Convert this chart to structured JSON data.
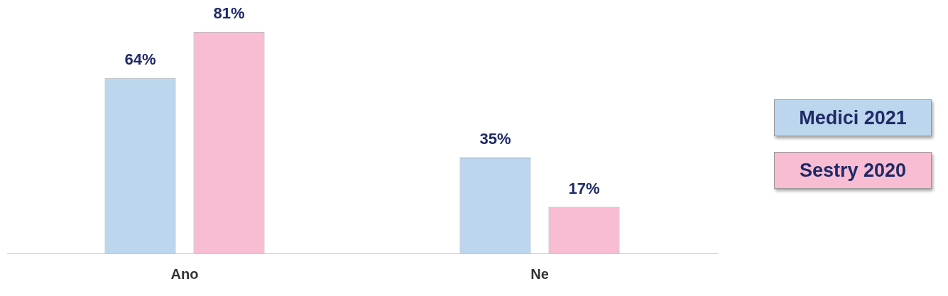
{
  "chart_data": {
    "type": "bar",
    "categories": [
      "Ano",
      "Ne"
    ],
    "series": [
      {
        "name": "Medici 2021",
        "color": "#bcd6ee",
        "values": [
          64,
          35
        ],
        "value_labels": [
          "64%",
          "35%"
        ]
      },
      {
        "name": "Sestry 2020",
        "color": "#f8bcd3",
        "values": [
          81,
          17
        ],
        "value_labels": [
          "81%",
          "17%"
        ]
      }
    ],
    "legend": "right",
    "grid": false
  }
}
